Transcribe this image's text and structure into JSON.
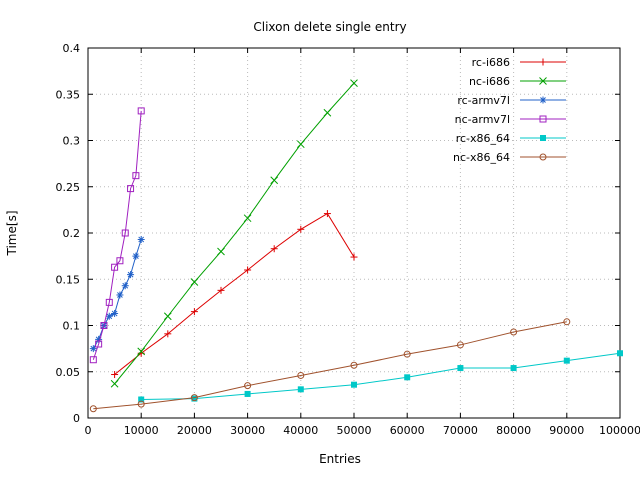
{
  "chart_data": {
    "type": "line",
    "title": "Clixon delete single entry",
    "xlabel": "Entries",
    "ylabel": "Time[s]",
    "xlim": [
      0,
      100000
    ],
    "ylim": [
      0,
      0.4
    ],
    "grid": true,
    "legend_position": "top-right-inside",
    "background_color": "#ffffff",
    "grid_color": "#bbbbbb",
    "axis_color": "#000000",
    "text_color": "#000000",
    "xticks": [
      {
        "v": 0,
        "label": "0"
      },
      {
        "v": 10000,
        "label": "10000"
      },
      {
        "v": 20000,
        "label": "20000"
      },
      {
        "v": 30000,
        "label": "30000"
      },
      {
        "v": 40000,
        "label": "40000"
      },
      {
        "v": 50000,
        "label": "50000"
      },
      {
        "v": 60000,
        "label": "60000"
      },
      {
        "v": 70000,
        "label": "70000"
      },
      {
        "v": 80000,
        "label": "80000"
      },
      {
        "v": 90000,
        "label": "90000"
      },
      {
        "v": 100000,
        "label": "100000"
      }
    ],
    "yticks": [
      {
        "v": 0,
        "label": "0"
      },
      {
        "v": 0.05,
        "label": "0.05"
      },
      {
        "v": 0.1,
        "label": "0.1"
      },
      {
        "v": 0.15,
        "label": "0.15"
      },
      {
        "v": 0.2,
        "label": "0.2"
      },
      {
        "v": 0.25,
        "label": "0.25"
      },
      {
        "v": 0.3,
        "label": "0.3"
      },
      {
        "v": 0.35,
        "label": "0.35"
      },
      {
        "v": 0.4,
        "label": "0.4"
      }
    ],
    "series": [
      {
        "name": "rc-i686",
        "color": "#dd0000",
        "marker": "plus",
        "x": [
          5000,
          10000,
          15000,
          20000,
          25000,
          30000,
          35000,
          40000,
          45000,
          50000
        ],
        "y": [
          0.047,
          0.07,
          0.091,
          0.115,
          0.138,
          0.16,
          0.183,
          0.204,
          0.221,
          0.174
        ]
      },
      {
        "name": "nc-i686",
        "color": "#00a000",
        "marker": "cross",
        "x": [
          5000,
          10000,
          15000,
          20000,
          25000,
          30000,
          35000,
          40000,
          45000,
          50000
        ],
        "y": [
          0.037,
          0.072,
          0.11,
          0.147,
          0.18,
          0.216,
          0.257,
          0.296,
          0.33,
          0.362
        ]
      },
      {
        "name": "rc-armv7l",
        "color": "#2060c8",
        "marker": "asterisk",
        "x": [
          1000,
          2000,
          3000,
          4000,
          5000,
          6000,
          7000,
          8000,
          9000,
          10000
        ],
        "y": [
          0.075,
          0.085,
          0.1,
          0.11,
          0.113,
          0.133,
          0.143,
          0.155,
          0.175,
          0.193
        ]
      },
      {
        "name": "nc-armv7l",
        "color": "#a020c0",
        "marker": "square-open",
        "x": [
          1000,
          2000,
          3000,
          4000,
          5000,
          6000,
          7000,
          8000,
          9000,
          10000
        ],
        "y": [
          0.063,
          0.08,
          0.1,
          0.125,
          0.163,
          0.17,
          0.2,
          0.248,
          0.262,
          0.332
        ]
      },
      {
        "name": "rc-x86_64",
        "color": "#00c8c8",
        "marker": "square-filled",
        "x": [
          10000,
          20000,
          30000,
          40000,
          50000,
          60000,
          70000,
          80000,
          90000,
          100000
        ],
        "y": [
          0.02,
          0.021,
          0.026,
          0.031,
          0.036,
          0.044,
          0.054,
          0.054,
          0.062,
          0.07
        ]
      },
      {
        "name": "nc-x86_64",
        "color": "#a0522d",
        "marker": "circle-open",
        "x": [
          1000,
          10000,
          20000,
          30000,
          40000,
          50000,
          60000,
          70000,
          80000,
          90000
        ],
        "y": [
          0.01,
          0.015,
          0.022,
          0.035,
          0.046,
          0.057,
          0.069,
          0.079,
          0.093,
          0.104
        ]
      }
    ]
  }
}
